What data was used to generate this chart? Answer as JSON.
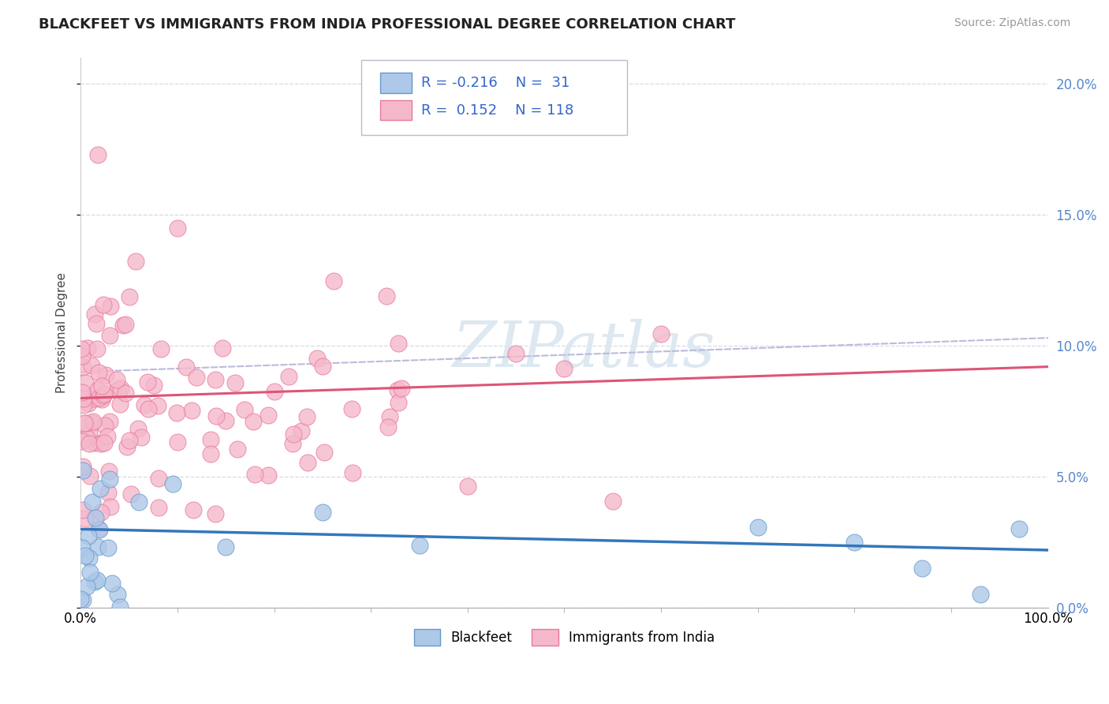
{
  "title": "BLACKFEET VS IMMIGRANTS FROM INDIA PROFESSIONAL DEGREE CORRELATION CHART",
  "source": "Source: ZipAtlas.com",
  "ylabel": "Professional Degree",
  "legend_labels": [
    "Blackfeet",
    "Immigrants from India"
  ],
  "r_blackfeet": -0.216,
  "n_blackfeet": 31,
  "r_india": 0.152,
  "n_india": 118,
  "blackfeet_color": "#adc8e8",
  "blackfeet_edge_color": "#6699cc",
  "india_color": "#f5b8cb",
  "india_edge_color": "#e8789a",
  "trend_blue_color": "#3377bb",
  "trend_pink_color": "#dd5577",
  "trend_dashed_color": "#bbbbdd",
  "watermark_color": "#dde8f0",
  "xmin": 0.0,
  "xmax": 100.0,
  "ymin": 0.0,
  "ymax": 21.0,
  "yticks": [
    0.0,
    5.0,
    10.0,
    15.0,
    20.0
  ],
  "ytick_labels_right": [
    "0.0%",
    "5.0%",
    "10.0%",
    "15.0%",
    "20.0%"
  ],
  "xtick_labels_pos": [
    0,
    100
  ],
  "xtick_labels": [
    "0.0%",
    "100.0%"
  ],
  "background_color": "#ffffff",
  "grid_color": "#d8d8e8",
  "title_fontsize": 13,
  "axis_label_fontsize": 11,
  "tick_fontsize": 12,
  "legend_fontsize": 13,
  "source_fontsize": 10,
  "bf_trend_start": 3.0,
  "bf_trend_end": 2.2,
  "ind_trend_start": 8.0,
  "ind_trend_end": 9.2,
  "dash_trend_start": 9.0,
  "dash_trend_end": 10.3
}
